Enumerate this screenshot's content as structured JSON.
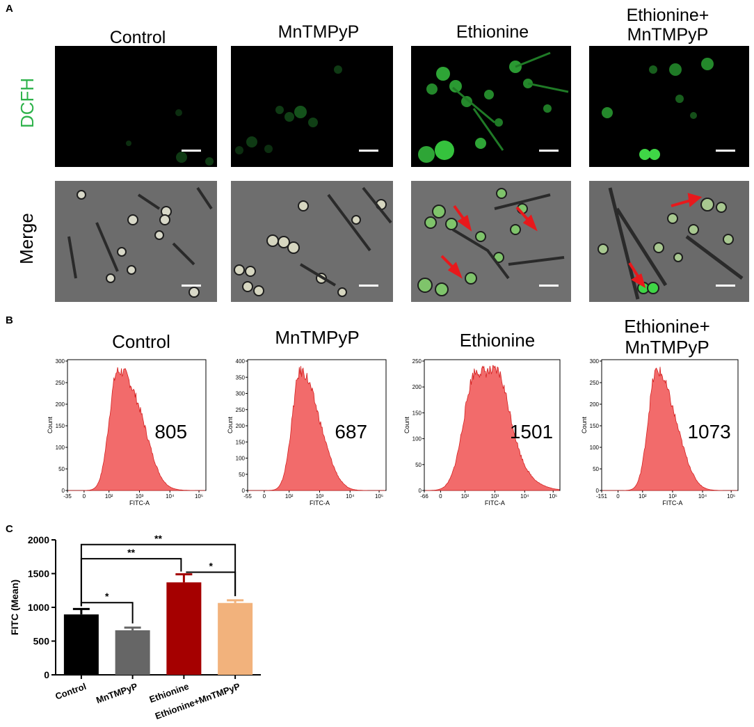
{
  "panel_labels": {
    "a": "A",
    "b": "B",
    "c": "C"
  },
  "panel_a": {
    "columns": [
      "Control",
      "MnTMPyP",
      "Ethionine",
      "Ethionine+\nMnTMPyP"
    ],
    "row_labels": {
      "dcfh": "DCFH",
      "merge": "Merge"
    },
    "colors": {
      "dcfh_label": "#2db24a",
      "arrow": "#e8191c",
      "fluorescence": "#3ee043"
    }
  },
  "panel_b": {
    "histograms": [
      {
        "title": "Control",
        "value": "805",
        "x_min_tick": "-35",
        "y_max_tick": "300",
        "y_ticks": [
          "300",
          "250",
          "200",
          "150",
          "100",
          "50",
          "0"
        ]
      },
      {
        "title": "MnTMPyP",
        "value": "687",
        "x_min_tick": "-55",
        "y_max_tick": "400",
        "y_ticks": [
          "400",
          "350",
          "300",
          "250",
          "200",
          "150",
          "100",
          "50",
          "0"
        ]
      },
      {
        "title": "Ethionine",
        "value": "1501",
        "x_min_tick": "-66",
        "y_max_tick": "250",
        "y_ticks": [
          "250",
          "200",
          "150",
          "100",
          "50",
          "0"
        ]
      },
      {
        "title": "Ethionine+\nMnTMPyP",
        "value": "1073",
        "x_min_tick": "-151",
        "y_max_tick": "300",
        "y_ticks": [
          "300",
          "250",
          "200",
          "150",
          "100",
          "50",
          "0"
        ]
      }
    ],
    "x_axis_label": "FITC-A",
    "y_axis_label": "Count",
    "x_log_ticks": [
      "0",
      "10²",
      "10³",
      "10⁴",
      "10⁵"
    ],
    "fill_color": "#f26b6b",
    "stroke_color": "#d42020"
  },
  "chart_data": {
    "type": "bar",
    "categories": [
      "Control",
      "MnTMPyP",
      "Ethionine",
      "Ethionine+MnTMPyP"
    ],
    "values": [
      895,
      660,
      1370,
      1065
    ],
    "errors": [
      80,
      40,
      120,
      40
    ],
    "colors": [
      "#000000",
      "#666666",
      "#a50000",
      "#f2b27c"
    ],
    "ylabel": "FITC (Mean)",
    "xlabel": "",
    "ylim": [
      0,
      2000
    ],
    "yticks": [
      0,
      500,
      1000,
      1500,
      2000
    ],
    "significance": [
      {
        "from": 0,
        "to": 1,
        "label": "*"
      },
      {
        "from": 0,
        "to": 2,
        "label": "**"
      },
      {
        "from": 2,
        "to": 3,
        "label": "*"
      },
      {
        "from": 0,
        "to": 3,
        "label": "**"
      }
    ]
  }
}
